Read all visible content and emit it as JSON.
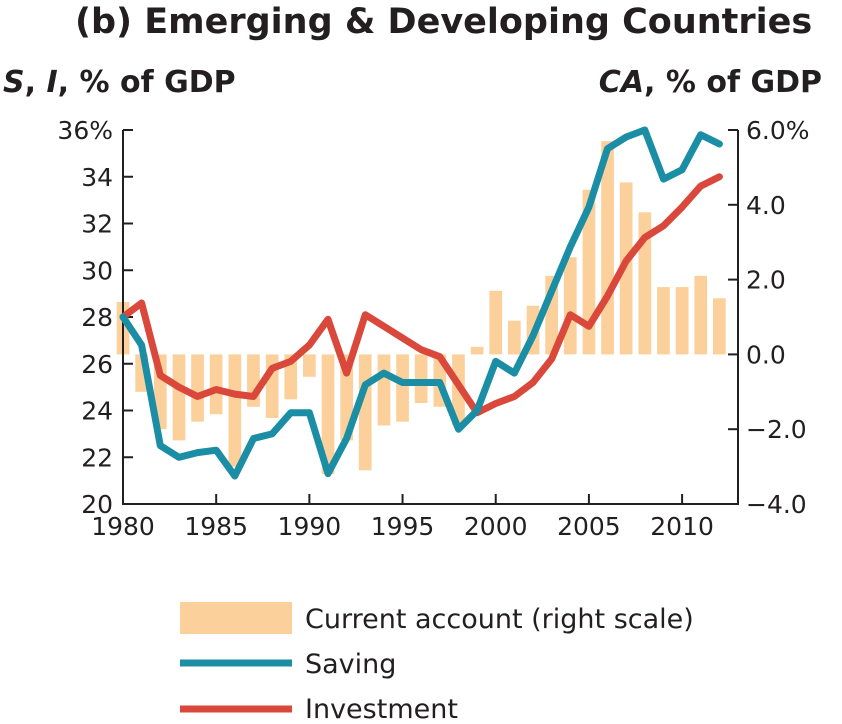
{
  "chart_data": {
    "type": "bar+line",
    "title": "(b) Emerging & Developing Countries",
    "left_axis": {
      "label_parts": [
        {
          "text": "S",
          "italic": true
        },
        {
          "text": ", ",
          "italic": false
        },
        {
          "text": "I",
          "italic": true
        },
        {
          "text": ", % of GDP",
          "italic": false
        }
      ],
      "ylim": [
        20,
        36
      ],
      "ticks": [
        20,
        22,
        24,
        26,
        28,
        30,
        32,
        34,
        36
      ],
      "tick_labels": [
        "20",
        "22",
        "24",
        "26",
        "28",
        "30",
        "32",
        "34",
        "36%"
      ]
    },
    "right_axis": {
      "label_parts": [
        {
          "text": "CA",
          "italic": true
        },
        {
          "text": ", % of GDP",
          "italic": false
        }
      ],
      "ylim": [
        -4.0,
        6.0
      ],
      "ticks": [
        -4.0,
        -2.0,
        0.0,
        2.0,
        4.0,
        6.0
      ],
      "tick_labels": [
        "−4.0",
        "−2.0",
        "0.0",
        "2.0",
        "4.0",
        "6.0%"
      ]
    },
    "x_axis": {
      "xlim": [
        1980,
        2013
      ],
      "ticks": [
        1980,
        1985,
        1990,
        1995,
        2000,
        2005,
        2010
      ],
      "tick_labels": [
        "1980",
        "1985",
        "1990",
        "1995",
        "2000",
        "2005",
        "2010"
      ]
    },
    "years": [
      1980,
      1981,
      1982,
      1983,
      1984,
      1985,
      1986,
      1987,
      1988,
      1989,
      1990,
      1991,
      1992,
      1993,
      1994,
      1995,
      1996,
      1997,
      1998,
      1999,
      2000,
      2001,
      2002,
      2003,
      2004,
      2005,
      2006,
      2007,
      2008,
      2009,
      2010,
      2011,
      2012
    ],
    "series": [
      {
        "name": "Current account (right scale)",
        "kind": "bar",
        "axis": "right",
        "color": "#fbd09b",
        "values": [
          1.4,
          -1.0,
          -2.0,
          -2.3,
          -1.8,
          -1.6,
          -3.0,
          -1.4,
          -1.7,
          -1.2,
          -0.6,
          -3.2,
          -2.3,
          -3.1,
          -1.9,
          -1.8,
          -1.3,
          -1.4,
          -1.9,
          0.2,
          1.7,
          0.9,
          1.3,
          2.1,
          2.6,
          4.4,
          5.7,
          4.6,
          3.8,
          1.8,
          1.8,
          2.1,
          1.5
        ]
      },
      {
        "name": "Saving",
        "kind": "line",
        "axis": "left",
        "color": "#1b8ea6",
        "values": [
          28.0,
          26.8,
          22.5,
          22.0,
          22.2,
          22.3,
          21.2,
          22.8,
          23.0,
          23.9,
          23.9,
          21.3,
          22.8,
          25.1,
          25.6,
          25.2,
          25.2,
          25.2,
          23.2,
          24.0,
          26.1,
          25.6,
          27.2,
          29.1,
          31.0,
          32.7,
          35.2,
          35.7,
          36.0,
          33.9,
          34.3,
          35.8,
          35.4
        ]
      },
      {
        "name": "Investment",
        "kind": "line",
        "axis": "left",
        "color": "#d9483b",
        "values": [
          28.0,
          28.6,
          25.5,
          25.0,
          24.6,
          24.9,
          24.7,
          24.6,
          25.8,
          26.1,
          26.8,
          27.9,
          25.6,
          28.1,
          27.6,
          27.1,
          26.6,
          26.3,
          25.1,
          23.9,
          24.3,
          24.6,
          25.2,
          26.2,
          28.1,
          27.6,
          28.9,
          30.4,
          31.4,
          31.9,
          32.7,
          33.6,
          34.0
        ]
      }
    ],
    "legend_position": "bottom"
  }
}
